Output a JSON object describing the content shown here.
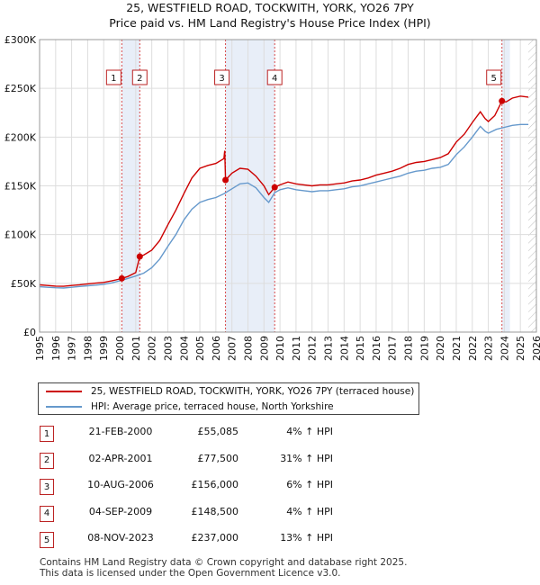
{
  "chart_data": {
    "type": "line",
    "title": "25, WESTFIELD ROAD, TOCKWITH, YORK, YO26 7PY",
    "subtitle": "Price paid vs. HM Land Registry's House Price Index (HPI)",
    "xlim": [
      1995,
      2026
    ],
    "ylim": [
      0,
      300000
    ],
    "x_ticks": [
      "1995",
      "1996",
      "1997",
      "1998",
      "1999",
      "2000",
      "2001",
      "2002",
      "2003",
      "2004",
      "2005",
      "2006",
      "2007",
      "2008",
      "2009",
      "2010",
      "2011",
      "2012",
      "2013",
      "2014",
      "2015",
      "2016",
      "2017",
      "2018",
      "2019",
      "2020",
      "2021",
      "2022",
      "2023",
      "2024",
      "2025",
      "2026"
    ],
    "y_ticks": [
      {
        "value": 0,
        "label": "£0"
      },
      {
        "value": 50000,
        "label": "£50K"
      },
      {
        "value": 100000,
        "label": "£100K"
      },
      {
        "value": 150000,
        "label": "£150K"
      },
      {
        "value": 200000,
        "label": "£200K"
      },
      {
        "value": 250000,
        "label": "£250K"
      },
      {
        "value": 300000,
        "label": "£300K"
      }
    ],
    "grid": true,
    "shaded_periods": [
      [
        2000.13,
        2001.25
      ],
      [
        2006.6,
        2009.67
      ],
      [
        2023.85,
        2024.35
      ]
    ],
    "hatched_from": 2025.5,
    "series": [
      {
        "name": "25, WESTFIELD ROAD, TOCKWITH, YORK, YO26 7PY (terraced house)",
        "color": "#cc0000",
        "points": [
          [
            1995.0,
            48500
          ],
          [
            1995.5,
            47800
          ],
          [
            1996.0,
            47200
          ],
          [
            1996.5,
            47000
          ],
          [
            1997.0,
            47800
          ],
          [
            1997.5,
            48600
          ],
          [
            1998.0,
            49500
          ],
          [
            1998.5,
            50200
          ],
          [
            1999.0,
            51000
          ],
          [
            1999.5,
            52500
          ],
          [
            2000.0,
            54500
          ],
          [
            2000.13,
            55085
          ],
          [
            2000.5,
            57000
          ],
          [
            2001.0,
            61000
          ],
          [
            2001.25,
            77500
          ],
          [
            2001.5,
            79000
          ],
          [
            2002.0,
            84000
          ],
          [
            2002.5,
            94000
          ],
          [
            2003.0,
            110000
          ],
          [
            2003.5,
            125000
          ],
          [
            2004.0,
            142000
          ],
          [
            2004.5,
            158000
          ],
          [
            2005.0,
            168000
          ],
          [
            2005.5,
            171000
          ],
          [
            2006.0,
            173000
          ],
          [
            2006.5,
            178000
          ],
          [
            2006.55,
            186000
          ],
          [
            2006.6,
            156000
          ],
          [
            2007.0,
            163000
          ],
          [
            2007.5,
            168000
          ],
          [
            2008.0,
            167000
          ],
          [
            2008.5,
            160000
          ],
          [
            2009.0,
            150000
          ],
          [
            2009.3,
            141000
          ],
          [
            2009.67,
            148500
          ],
          [
            2010.0,
            151000
          ],
          [
            2010.5,
            154000
          ],
          [
            2011.0,
            152000
          ],
          [
            2011.5,
            151000
          ],
          [
            2012.0,
            150000
          ],
          [
            2012.5,
            151000
          ],
          [
            2013.0,
            151000
          ],
          [
            2013.5,
            152000
          ],
          [
            2014.0,
            153000
          ],
          [
            2014.5,
            155000
          ],
          [
            2015.0,
            156000
          ],
          [
            2015.5,
            158000
          ],
          [
            2016.0,
            161000
          ],
          [
            2016.5,
            163000
          ],
          [
            2017.0,
            165000
          ],
          [
            2017.5,
            168000
          ],
          [
            2018.0,
            172000
          ],
          [
            2018.5,
            174000
          ],
          [
            2019.0,
            175000
          ],
          [
            2019.5,
            177000
          ],
          [
            2020.0,
            179000
          ],
          [
            2020.5,
            183000
          ],
          [
            2021.0,
            195000
          ],
          [
            2021.5,
            203000
          ],
          [
            2022.0,
            215000
          ],
          [
            2022.5,
            226000
          ],
          [
            2022.8,
            219000
          ],
          [
            2023.0,
            216000
          ],
          [
            2023.4,
            222000
          ],
          [
            2023.85,
            237000
          ],
          [
            2024.1,
            236000
          ],
          [
            2024.5,
            240000
          ],
          [
            2025.0,
            242000
          ],
          [
            2025.5,
            241000
          ]
        ]
      },
      {
        "name": "HPI: Average price, terraced house, North Yorkshire",
        "color": "#6699cc",
        "points": [
          [
            1995.0,
            46500
          ],
          [
            1995.5,
            46000
          ],
          [
            1996.0,
            45500
          ],
          [
            1996.5,
            45200
          ],
          [
            1997.0,
            46000
          ],
          [
            1997.5,
            46800
          ],
          [
            1998.0,
            47500
          ],
          [
            1998.5,
            48200
          ],
          [
            1999.0,
            49000
          ],
          [
            1999.5,
            50500
          ],
          [
            2000.0,
            52500
          ],
          [
            2000.5,
            55000
          ],
          [
            2001.0,
            57500
          ],
          [
            2001.5,
            60500
          ],
          [
            2002.0,
            66000
          ],
          [
            2002.5,
            75000
          ],
          [
            2003.0,
            88000
          ],
          [
            2003.5,
            100000
          ],
          [
            2004.0,
            115000
          ],
          [
            2004.5,
            126000
          ],
          [
            2005.0,
            133000
          ],
          [
            2005.5,
            136000
          ],
          [
            2006.0,
            138000
          ],
          [
            2006.5,
            142000
          ],
          [
            2007.0,
            147000
          ],
          [
            2007.5,
            152000
          ],
          [
            2008.0,
            153000
          ],
          [
            2008.5,
            148000
          ],
          [
            2009.0,
            138000
          ],
          [
            2009.3,
            133000
          ],
          [
            2009.67,
            143000
          ],
          [
            2010.0,
            146000
          ],
          [
            2010.5,
            148000
          ],
          [
            2011.0,
            146000
          ],
          [
            2011.5,
            145000
          ],
          [
            2012.0,
            144000
          ],
          [
            2012.5,
            145000
          ],
          [
            2013.0,
            145000
          ],
          [
            2013.5,
            146000
          ],
          [
            2014.0,
            147000
          ],
          [
            2014.5,
            149000
          ],
          [
            2015.0,
            150000
          ],
          [
            2015.5,
            152000
          ],
          [
            2016.0,
            154000
          ],
          [
            2016.5,
            156000
          ],
          [
            2017.0,
            158000
          ],
          [
            2017.5,
            160000
          ],
          [
            2018.0,
            163000
          ],
          [
            2018.5,
            165000
          ],
          [
            2019.0,
            166000
          ],
          [
            2019.5,
            168000
          ],
          [
            2020.0,
            169000
          ],
          [
            2020.5,
            172000
          ],
          [
            2021.0,
            182000
          ],
          [
            2021.5,
            190000
          ],
          [
            2022.0,
            200000
          ],
          [
            2022.5,
            211000
          ],
          [
            2022.8,
            206000
          ],
          [
            2023.0,
            204000
          ],
          [
            2023.5,
            208000
          ],
          [
            2024.0,
            210000
          ],
          [
            2024.5,
            212000
          ],
          [
            2025.0,
            213000
          ],
          [
            2025.5,
            213000
          ]
        ]
      }
    ],
    "markers": [
      {
        "label": "1",
        "x": 2000.13,
        "y": 55085
      },
      {
        "label": "2",
        "x": 2001.25,
        "y": 77500
      },
      {
        "label": "3",
        "x": 2006.6,
        "y": 156000
      },
      {
        "label": "4",
        "x": 2009.67,
        "y": 148500
      },
      {
        "label": "5",
        "x": 2023.85,
        "y": 237000
      }
    ]
  },
  "legend": {
    "property": "25, WESTFIELD ROAD, TOCKWITH, YORK, YO26 7PY (terraced house)",
    "hpi": "HPI: Average price, terraced house, North Yorkshire"
  },
  "sales": [
    {
      "num": "1",
      "date": "21-FEB-2000",
      "price": "£55,085",
      "hpi": "4% ↑ HPI"
    },
    {
      "num": "2",
      "date": "02-APR-2001",
      "price": "£77,500",
      "hpi": "31% ↑ HPI"
    },
    {
      "num": "3",
      "date": "10-AUG-2006",
      "price": "£156,000",
      "hpi": "6% ↑ HPI"
    },
    {
      "num": "4",
      "date": "04-SEP-2009",
      "price": "£148,500",
      "hpi": "4% ↑ HPI"
    },
    {
      "num": "5",
      "date": "08-NOV-2023",
      "price": "£237,000",
      "hpi": "13% ↑ HPI"
    }
  ],
  "footer": {
    "line1": "Contains HM Land Registry data © Crown copyright and database right 2025.",
    "line2": "This data is licensed under the Open Government Licence v3.0."
  },
  "colors": {
    "property": "#cc0000",
    "hpi": "#6699cc",
    "shade": "#e8eef8",
    "grid": "#dddddd"
  }
}
